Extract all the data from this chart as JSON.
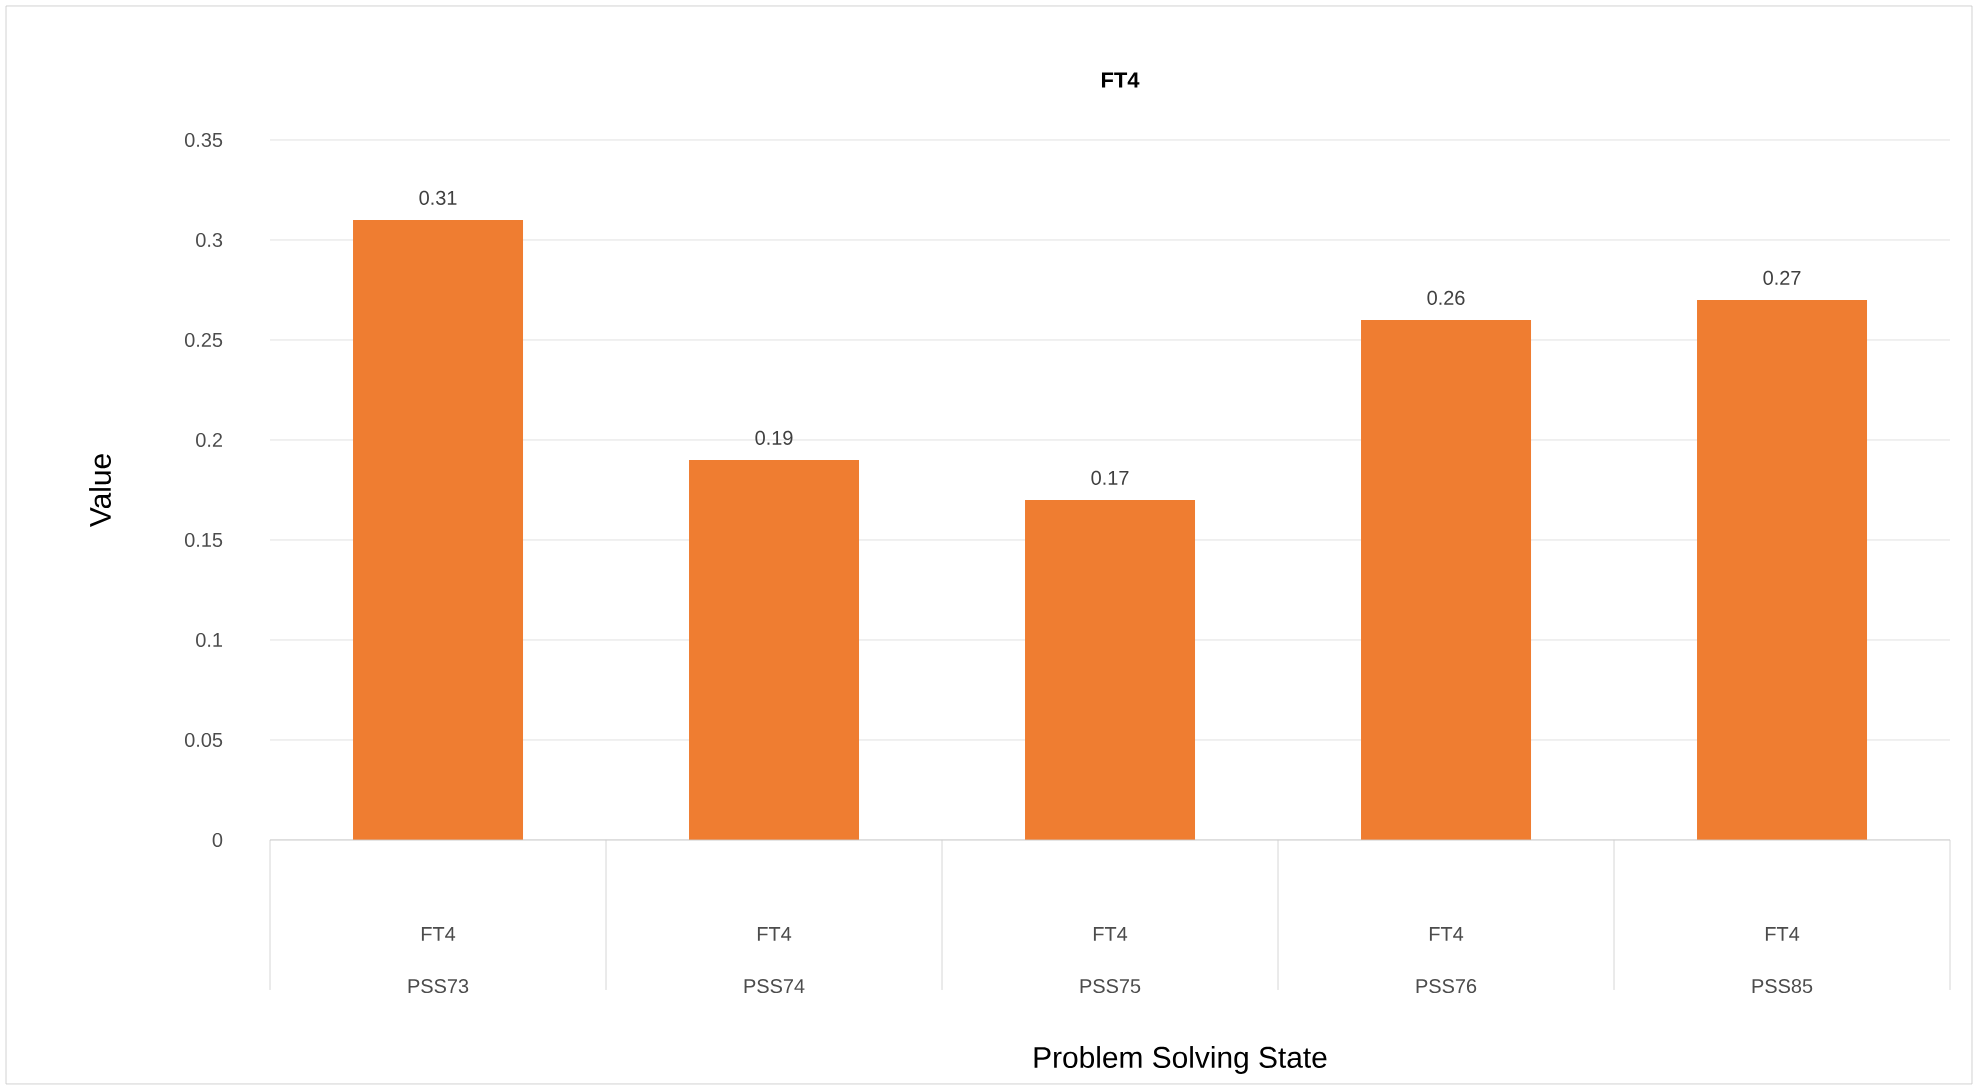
{
  "chart_data": {
    "type": "bar",
    "title": "FT4",
    "xlabel": "Problem Solving State",
    "ylabel": "Value",
    "categories": [
      "PSS73",
      "PSS74",
      "PSS75",
      "PSS76",
      "PSS85"
    ],
    "values": [
      0.31,
      0.19,
      0.17,
      0.26,
      0.27
    ],
    "color": "#ef7d31",
    "ylim": [
      0,
      0.35
    ],
    "yticks": [
      0,
      0.05,
      0.1,
      0.15,
      0.2,
      0.25,
      0.3,
      0.35
    ],
    "grid": "y",
    "data_labels": true,
    "annotations": [
      "FT4",
      "FT4",
      "FT4",
      "FT4",
      "FT4"
    ]
  }
}
